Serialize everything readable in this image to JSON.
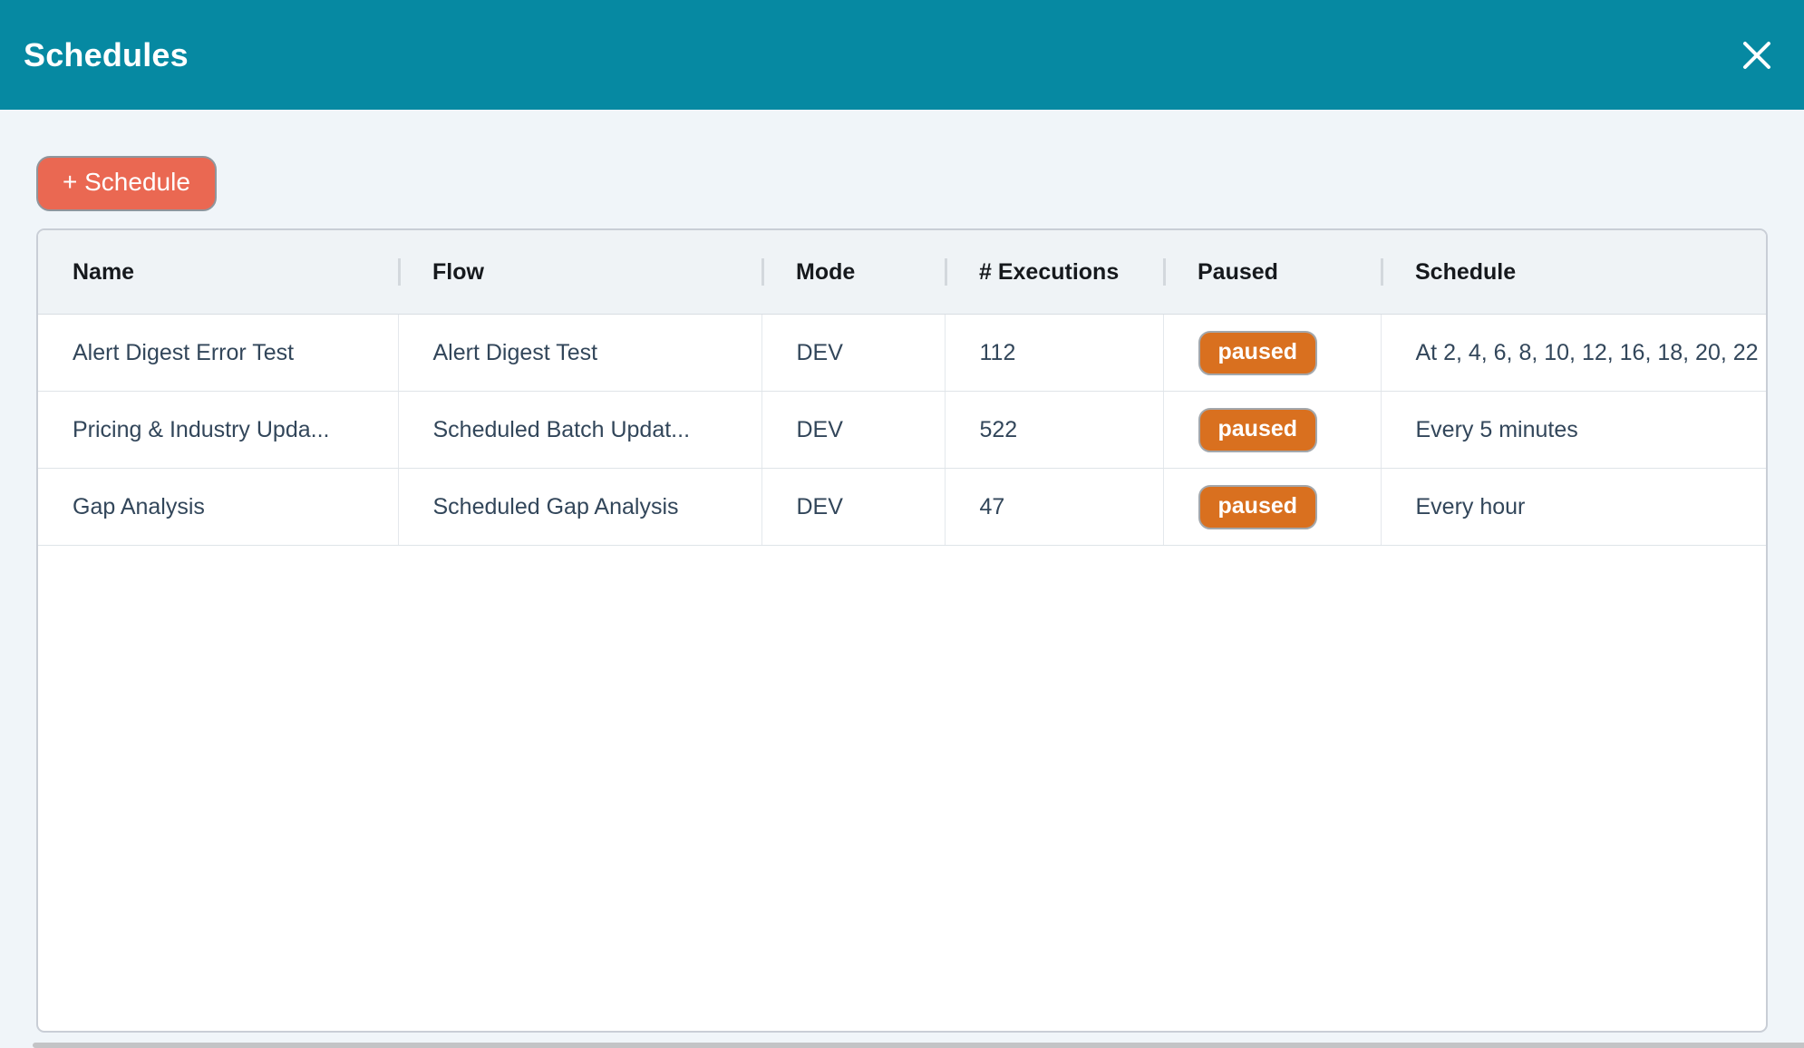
{
  "modal": {
    "title": "Schedules",
    "close_icon": "x"
  },
  "toolbar": {
    "add_schedule_label": "+ Schedule"
  },
  "table": {
    "columns": [
      {
        "key": "name",
        "label": "Name"
      },
      {
        "key": "flow",
        "label": "Flow"
      },
      {
        "key": "mode",
        "label": "Mode"
      },
      {
        "key": "executions",
        "label": "# Executions"
      },
      {
        "key": "paused",
        "label": "Paused"
      },
      {
        "key": "schedule",
        "label": "Schedule"
      }
    ],
    "rows": [
      {
        "name": "Alert Digest Error Test",
        "flow": "Alert Digest Test",
        "mode": "DEV",
        "executions": "112",
        "paused": "paused",
        "schedule": "At 2, 4, 6, 8, 10, 12, 16, 18, 20, 22"
      },
      {
        "name": "Pricing & Industry Upda...",
        "flow": "Scheduled Batch Updat...",
        "mode": "DEV",
        "executions": "522",
        "paused": "paused",
        "schedule": "Every 5 minutes"
      },
      {
        "name": "Gap Analysis",
        "flow": "Scheduled Gap Analysis",
        "mode": "DEV",
        "executions": "47",
        "paused": "paused",
        "schedule": "Every hour"
      }
    ]
  },
  "colors": {
    "header_teal": "#0689a2",
    "page_background": "#f0f5f9",
    "add_button_coral": "#ea6852",
    "badge_orange": "#d9701f",
    "cell_text": "#32465a"
  }
}
